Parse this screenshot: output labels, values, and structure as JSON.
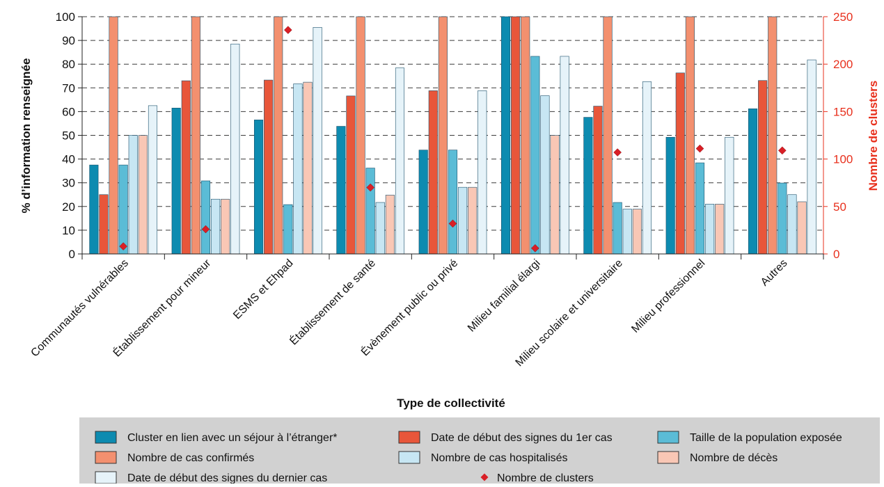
{
  "chart_data": {
    "type": "bar",
    "xlabel": "Type de collectivité",
    "ylabel": "% d’information renseignée",
    "y2label": "Nombre de clusters",
    "ylim": [
      0,
      100
    ],
    "y2lim": [
      0,
      250
    ],
    "yticks": [
      0,
      10,
      20,
      30,
      40,
      50,
      60,
      70,
      80,
      90,
      100
    ],
    "y2ticks": [
      0,
      50,
      100,
      150,
      200,
      250
    ],
    "grid": "horizontal-dashed",
    "legend_position": "bottom",
    "categories": [
      "Communautés vulnérables",
      "Établissement pour mineur",
      "ESMS et Ehpad",
      "Établissement de santé",
      "Évènement public ou privé",
      "Milieu familial élargi",
      "Milieu scolaire et universitaire",
      "Milieu professionnel",
      "Autres"
    ],
    "series": [
      {
        "name": "Cluster en lien avec un séjour à l’étranger*",
        "color": "#0d8bb0",
        "values": [
          37.5,
          61.5,
          56.5,
          53.8,
          43.8,
          100,
          57.6,
          49.2,
          61.2
        ]
      },
      {
        "name": "Date de début des signes du 1er cas",
        "color": "#e8563a",
        "values": [
          25,
          73,
          73.3,
          66.6,
          68.8,
          100,
          62.3,
          76.3,
          73.1
        ]
      },
      {
        "name": "Nombre de cas confirmés",
        "color": "#f3906f",
        "values": [
          100,
          100,
          100,
          100,
          100,
          100,
          100,
          100,
          100
        ]
      },
      {
        "name": "Taille de la population exposée",
        "color": "#5bbcd6",
        "values": [
          37.5,
          30.8,
          20.8,
          36.2,
          43.8,
          83.3,
          21.7,
          38.4,
          29.9
        ]
      },
      {
        "name": "Nombre de cas hospitalisés",
        "color": "#c7e6f3",
        "values": [
          50,
          23.1,
          71.7,
          21.7,
          28.1,
          66.7,
          18.9,
          21,
          25
        ]
      },
      {
        "name": "Nombre de décès",
        "color": "#f9c7b5",
        "values": [
          50,
          23.1,
          72.4,
          24.8,
          28.1,
          50,
          18.9,
          21,
          22
        ]
      },
      {
        "name": "Date de début des signes du dernier cas",
        "color": "#e6f3f9",
        "values": [
          62.5,
          88.5,
          95.5,
          78.4,
          68.8,
          83.3,
          72.6,
          49.2,
          81.8
        ]
      }
    ],
    "marker_series": {
      "name": "Nombre de clusters",
      "color": "#d91f26",
      "axis": "right",
      "values": [
        8,
        26,
        236,
        70,
        32,
        6,
        107,
        111,
        109
      ]
    },
    "legend": [
      {
        "label": "Cluster en lien avec un séjour à l’étranger*",
        "color": "#0d8bb0",
        "kind": "box"
      },
      {
        "label": "Date de début des signes du 1er cas",
        "color": "#e8563a",
        "kind": "box"
      },
      {
        "label": "Taille de la population exposée",
        "color": "#5bbcd6",
        "kind": "box"
      },
      {
        "label": "Nombre de cas confirmés",
        "color": "#f3906f",
        "kind": "box"
      },
      {
        "label": "Nombre de cas hospitalisés",
        "color": "#c7e6f3",
        "kind": "box"
      },
      {
        "label": "Nombre de décès",
        "color": "#f9c7b5",
        "kind": "box"
      },
      {
        "label": "Date de début des signes du dernier cas",
        "color": "#e6f3f9",
        "kind": "box"
      },
      {
        "label": "Nombre de clusters",
        "color": "#d91f26",
        "kind": "diamond"
      }
    ]
  }
}
